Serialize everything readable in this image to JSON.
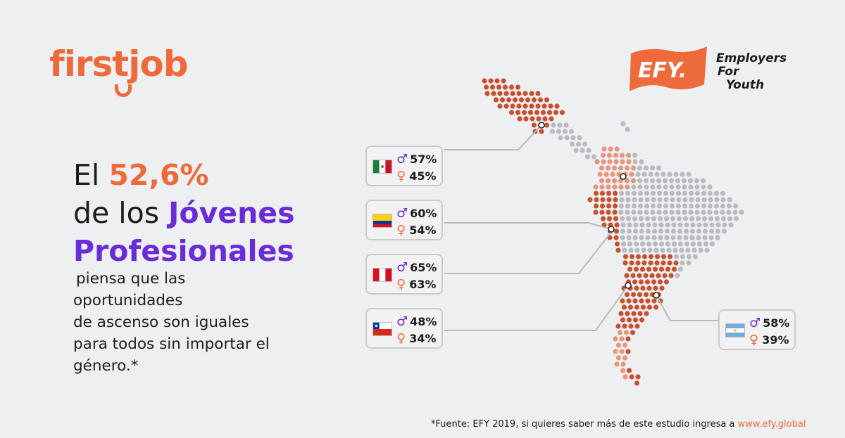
{
  "brand": {
    "firstjob_logo": "firstjob"
  },
  "efy": {
    "flag_text": "EFY.",
    "line1": "Employers",
    "line2": "For",
    "line3": "Youth"
  },
  "headline": {
    "prefix": "El ",
    "percent": "52,6%",
    "line2_prefix": "de los ",
    "line2_highlight": "Jóvenes",
    "line3": "Profesionales"
  },
  "body_lines": [
    "piensa que las",
    "oportunidades",
    "de ascenso son iguales",
    "para todos sin importar el",
    "género.*"
  ],
  "stats": [
    {
      "country": "México",
      "flag": "mexico-flag",
      "male": "57%",
      "female": "45%"
    },
    {
      "country": "Colombia",
      "flag": "colombia-flag",
      "male": "60%",
      "female": "54%"
    },
    {
      "country": "Perú",
      "flag": "peru-flag",
      "male": "65%",
      "female": "63%"
    },
    {
      "country": "Chile",
      "flag": "chile-flag",
      "male": "48%",
      "female": "34%"
    },
    {
      "country": "Argentina",
      "flag": "argentina-flag",
      "male": "58%",
      "female": "39%"
    }
  ],
  "symbols": {
    "male": "♂",
    "female": "♀"
  },
  "footer": {
    "text": "*Fuente: EFY 2019, si quieres  saber más de este estudio ingresa a ",
    "link": "www.efy.global"
  },
  "colors": {
    "accent_orange": "#ee6a3a",
    "accent_purple": "#6a2cd8",
    "map_red": "#c9502e",
    "map_light": "#e9957d",
    "map_grey": "#b8bcc2"
  }
}
